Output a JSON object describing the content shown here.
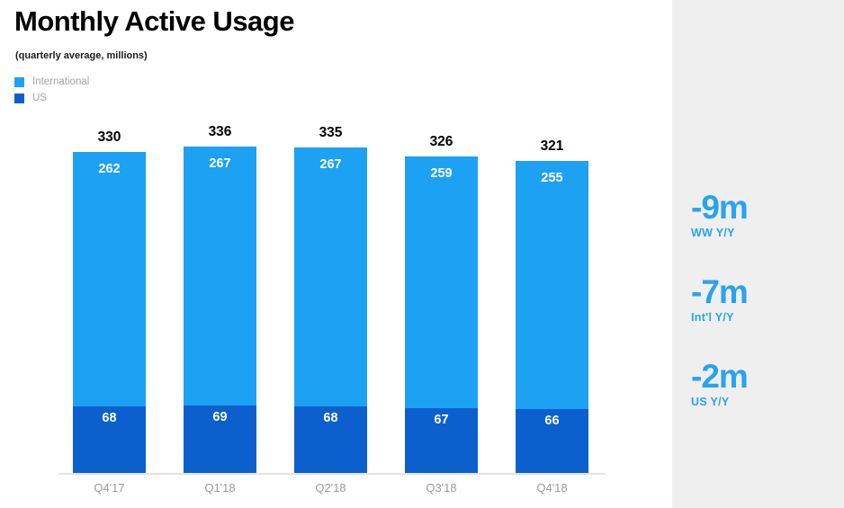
{
  "header": {
    "title": "Monthly Active Usage",
    "subtitle": "(quarterly average, millions)"
  },
  "legend": {
    "items": [
      {
        "label": "International",
        "color": "#1da1f2"
      },
      {
        "label": "US",
        "color": "#0b60ce"
      }
    ]
  },
  "chart_data": {
    "type": "bar",
    "stacked": true,
    "title": "Monthly Active Usage",
    "subtitle": "(quarterly average, millions)",
    "xlabel": "",
    "ylabel": "",
    "grid": false,
    "legend_position": "top-left",
    "categories": [
      "Q4'17",
      "Q1'18",
      "Q2'18",
      "Q3'18",
      "Q4'18"
    ],
    "series": [
      {
        "name": "International",
        "color": "#1da1f2",
        "values": [
          262,
          267,
          267,
          259,
          255
        ]
      },
      {
        "name": "US",
        "color": "#0b60ce",
        "values": [
          68,
          69,
          68,
          67,
          66
        ]
      }
    ],
    "totals": [
      330,
      336,
      335,
      326,
      321
    ]
  },
  "sidebar": {
    "background": "#efefef",
    "accent": "#2aa3ef",
    "stats": [
      {
        "value": "-9m",
        "label": "WW Y/Y"
      },
      {
        "value": "-7m",
        "label": "Int'l Y/Y"
      },
      {
        "value": "-2m",
        "label": "US Y/Y"
      }
    ]
  }
}
